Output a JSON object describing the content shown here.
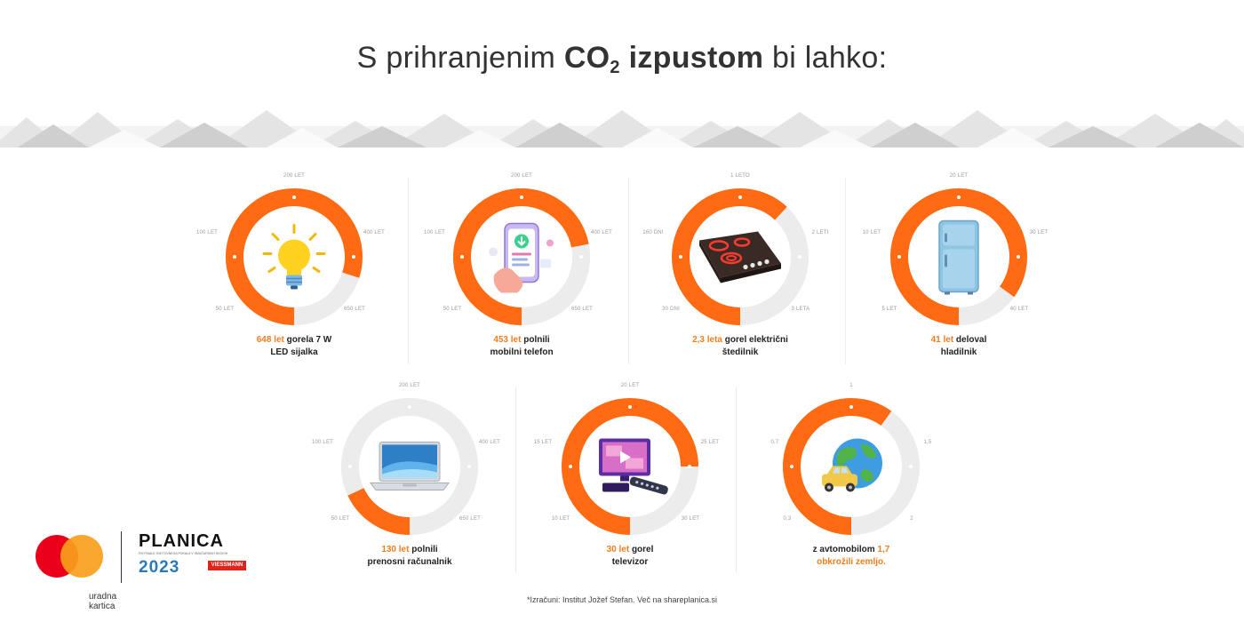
{
  "title": {
    "prefix": "S prihranjenim ",
    "co": "CO",
    "sub": "2",
    "bold_word": " izpustom",
    "suffix": " bi lahko:"
  },
  "colors": {
    "orange": "#ff6a13",
    "track": "#ececec",
    "accent_text": "#ef7e21"
  },
  "cards": [
    {
      "icon": "light-bulb-icon",
      "fill": 0.8,
      "ticks": {
        "top": "200 LET",
        "left": "100 LET",
        "right": "400 LET",
        "bottom_left": "50 LET",
        "bottom_right": "650 LET"
      },
      "caption": {
        "highlight": "648 let",
        "rest": " gorela 7 W",
        "line2": "LED sijalka"
      }
    },
    {
      "icon": "smartphone-icon",
      "fill": 0.72,
      "ticks": {
        "top": "200 LET",
        "left": "100 LET",
        "right": "400 LET",
        "bottom_left": "50 LET",
        "bottom_right": "650 LET"
      },
      "caption": {
        "highlight": "453 let",
        "rest": " polnili",
        "line2": "mobilni telefon"
      }
    },
    {
      "icon": "electric-stove-icon",
      "fill": 0.62,
      "ticks": {
        "top": "1 LETO",
        "left": "160 DNI",
        "right": "2 LETI",
        "bottom_left": "30 DNI",
        "bottom_right": "3 LETA"
      },
      "caption": {
        "highlight": "2,3 leta",
        "rest": " gorel električni",
        "line2": "štedilnik"
      }
    },
    {
      "icon": "refrigerator-icon",
      "fill": 0.85,
      "ticks": {
        "top": "20 LET",
        "left": "10 LET",
        "right": "30 LET",
        "bottom_left": "5 LET",
        "bottom_right": "40 LET"
      },
      "caption": {
        "highlight": "41 let",
        "rest": " deloval",
        "line2": "hladilnik"
      }
    },
    {
      "icon": "laptop-icon",
      "fill": 0.18,
      "ticks": {
        "top": "200 LET",
        "left": "100 LET",
        "right": "400 LET",
        "bottom_left": "50 LET",
        "bottom_right": "650 LET"
      },
      "caption": {
        "highlight": "130 let",
        "rest": " polnili",
        "line2": "prenosni računalnik"
      }
    },
    {
      "icon": "television-icon",
      "fill": 0.75,
      "ticks": {
        "top": "20 LET",
        "left": "15 LET",
        "right": "25 LET",
        "bottom_left": "10 LET",
        "bottom_right": "30 LET"
      },
      "caption": {
        "highlight": "30 let",
        "rest": " gorel",
        "line2": "televizor"
      }
    },
    {
      "icon": "car-globe-icon",
      "fill": 0.6,
      "ticks": {
        "top": "1",
        "left": "0,7",
        "right": "1,5",
        "bottom_left": "0,3",
        "bottom_right": "2"
      },
      "caption": {
        "pre": "z avtomobilom ",
        "highlight": "1,7",
        "line2": "obkrožili zemljo."
      }
    }
  ],
  "logos": {
    "planica": "PLANICA",
    "planica_sub": "FIS FINALE SVETOVNEGA POKALA V SMUČARSKIH SKOKIH",
    "year": "2023",
    "viessmann": "VIESSMANN",
    "card_label": "uradna kartica"
  },
  "footnote": "*Izračuni: Institut Jožef Stefan. Več na shareplanica.si"
}
